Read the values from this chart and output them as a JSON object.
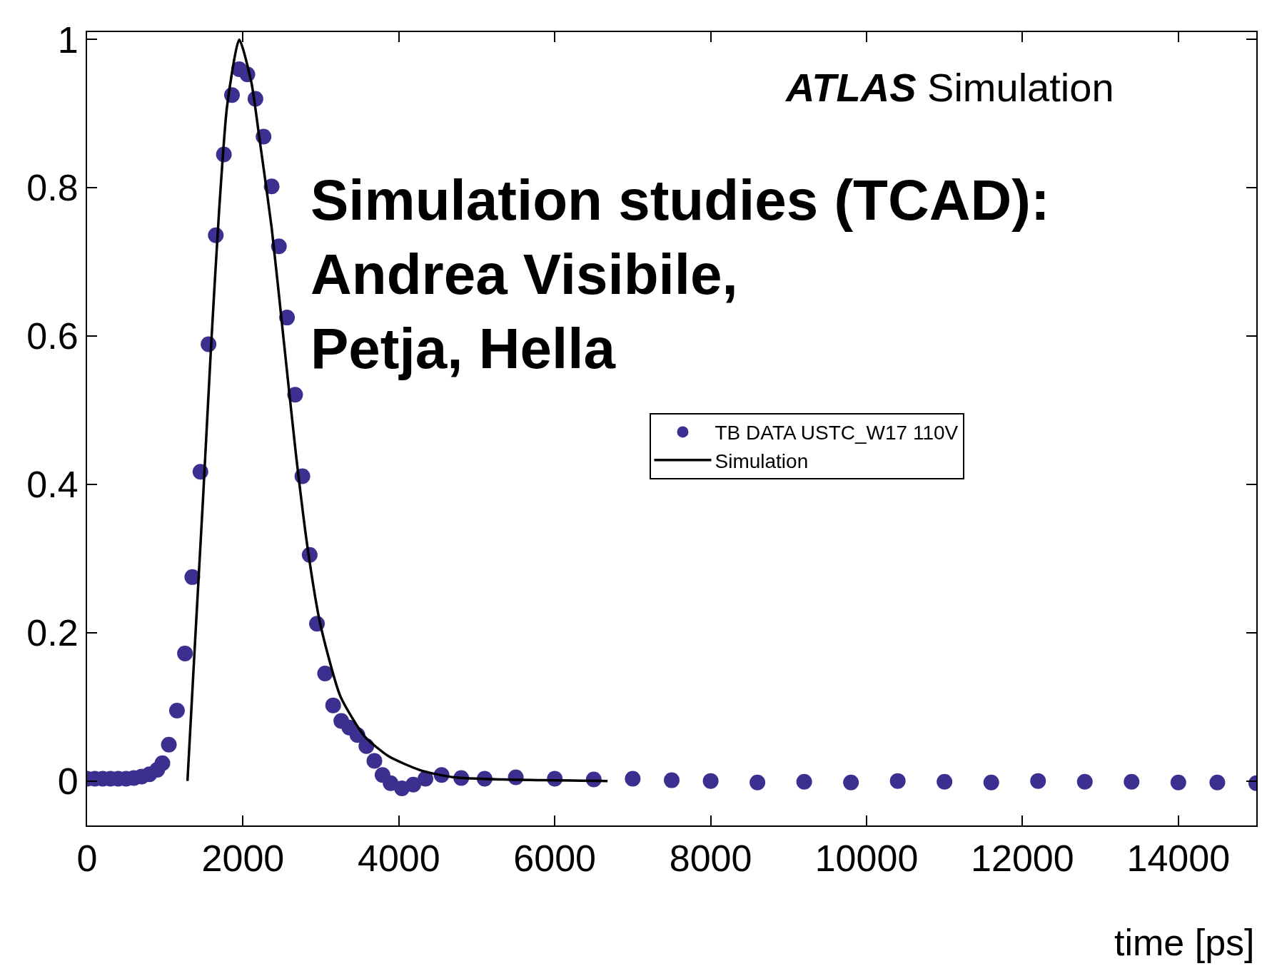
{
  "chart_data": {
    "type": "scatter",
    "xlabel": "time [ps]",
    "xlim": [
      0,
      15000
    ],
    "xticks": [
      0,
      2000,
      4000,
      6000,
      8000,
      10000,
      12000,
      14000
    ],
    "ylim": [
      -0.06,
      1.01
    ],
    "yticks": [
      0,
      0.2,
      0.4,
      0.6,
      0.8,
      1
    ],
    "legend": "right",
    "annotations": [
      "ATLAS Simulation",
      "Simulation studies (TCAD):Andrea Visibile, Petja, Hella"
    ],
    "series": [
      {
        "name": "TB DATA USTC_W17 110V",
        "marker": "circle",
        "color": "#3b3090",
        "x": [
          0,
          100,
          200,
          300,
          400,
          500,
          600,
          700,
          800,
          900,
          966,
          1049,
          1153,
          1256,
          1350,
          1454,
          1558,
          1651,
          1755,
          1859,
          1952,
          2056,
          2160,
          2264,
          2368,
          2461,
          2565,
          2669,
          2762,
          2856,
          2949,
          3053,
          3157,
          3261,
          3364,
          3468,
          3583,
          3686,
          3790,
          3894,
          4039,
          4185,
          4341,
          4548,
          4800,
          5100,
          5500,
          6000,
          6500,
          7000,
          7500,
          8000,
          8600,
          9200,
          9800,
          10400,
          11000,
          11600,
          12200,
          12800,
          13400,
          14000,
          14500,
          15000
        ],
        "values": [
          0.003,
          0.003,
          0.003,
          0.003,
          0.003,
          0.003,
          0.004,
          0.006,
          0.009,
          0.015,
          0.024,
          0.049,
          0.095,
          0.172,
          0.275,
          0.417,
          0.589,
          0.736,
          0.845,
          0.925,
          0.96,
          0.953,
          0.92,
          0.869,
          0.802,
          0.721,
          0.625,
          0.521,
          0.411,
          0.305,
          0.212,
          0.145,
          0.102,
          0.081,
          0.072,
          0.062,
          0.047,
          0.027,
          0.008,
          -0.003,
          -0.01,
          -0.005,
          0.003,
          0.008,
          0.004,
          0.003,
          0.005,
          0.003,
          0.002,
          0.003,
          0.001,
          0.0,
          -0.002,
          -0.001,
          -0.002,
          0.0,
          -0.001,
          -0.002,
          0.0,
          -0.001,
          -0.001,
          -0.002,
          -0.002,
          -0.003
        ]
      },
      {
        "name": "Simulation",
        "type": "line",
        "marker": "none",
        "color": "#000000",
        "x": [
          1288,
          1381,
          1485,
          1589,
          1693,
          1796,
          1952,
          2108,
          2212,
          2368,
          2523,
          2679,
          2835,
          2991,
          3250,
          3562,
          3873,
          4289,
          4704,
          5327,
          6677
        ],
        "values": [
          0,
          0.18,
          0.376,
          0.583,
          0.768,
          0.91,
          1.0,
          0.942,
          0.866,
          0.746,
          0.594,
          0.441,
          0.31,
          0.212,
          0.114,
          0.06,
          0.033,
          0.014,
          0.005,
          0.002,
          0
        ]
      }
    ]
  }
}
